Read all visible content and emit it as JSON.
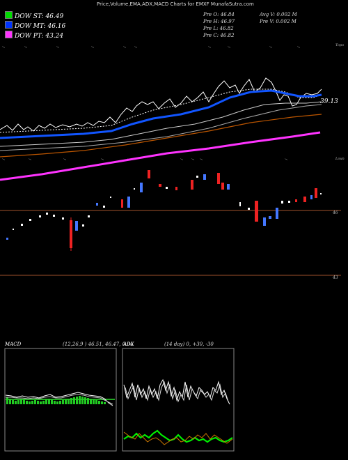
{
  "header": {
    "title": "Price,Volume,EMA,ADX,MACD Charts for EMXF MunafaSutra.com"
  },
  "legend": [
    {
      "label": "DOW ST: 46.49",
      "color": "#00dd00"
    },
    {
      "label": "DOW MT: 46.16",
      "color": "#0033ff"
    },
    {
      "label": "DOW PT: 43.24",
      "color": "#ff33ff"
    }
  ],
  "stats": {
    "pre_o": "Pre  O: 46.84",
    "pre_h": "Pre  H: 46.97",
    "pre_l": "Pre  L: 46.82",
    "pre_c": "Pre  C: 46.82",
    "avg_v": "Avg V: 0.002  M",
    "pre_v": "Pre  V: 0.002  M"
  },
  "top_panel": {
    "label_top": "Topo",
    "label_bottom": "Loun",
    "price_label": "39.13"
  },
  "candle_panel": {
    "level_high": "46",
    "level_low": "43"
  },
  "macd": {
    "title": "MACD",
    "params": "(12,26,9 ) 46.51, 46.47, 0.04"
  },
  "adx": {
    "title": "ADX",
    "params": "(14  day) 0, +30, -30"
  },
  "chart_data": [
    {
      "type": "line",
      "title": "Price,Volume,EMA,ADX,MACD Charts for EMXF",
      "series": [
        {
          "name": "DOW ST",
          "values": [
            37.8,
            37.5,
            37.2,
            37.4,
            37.9,
            38.3,
            38.6,
            38.9,
            39.2,
            39.6,
            40.1,
            40.7,
            41.4,
            41.9,
            42.3,
            42.5,
            43.1,
            43.2,
            43.6,
            43.9,
            44.5,
            44.9,
            45.1,
            44.8,
            44.4,
            44.8,
            45.4,
            45.9,
            46.2,
            46.4,
            46.49
          ]
        },
        {
          "name": "DOW MT",
          "values": [
            38.8,
            38.5,
            38.3,
            38.2,
            38.3,
            38.4,
            38.6,
            38.8,
            39.0,
            39.3,
            39.6,
            40.0,
            40.5,
            40.9,
            41.4,
            41.8,
            42.3,
            42.6,
            43.1,
            43.5,
            44.0,
            44.4,
            44.8,
            45.0,
            45.1,
            45.3,
            45.6,
            45.8,
            46.0,
            46.1,
            46.16
          ]
        },
        {
          "name": "DOW PT",
          "values": [
            34.8,
            35.0,
            35.2,
            35.5,
            35.8,
            36.1,
            36.4,
            36.7,
            37.0,
            37.4,
            37.8,
            38.1,
            38.5,
            38.9,
            39.3,
            39.6,
            40.0,
            40.3,
            40.6,
            41.0,
            41.4,
            41.7,
            42.0,
            42.2,
            42.4,
            42.6,
            42.8,
            42.9,
            43.0,
            43.1,
            43.24
          ]
        }
      ]
    },
    {
      "type": "bar",
      "title": "MACD",
      "series": [
        {
          "name": "MACD",
          "values": [
            46.51
          ]
        },
        {
          "name": "Signal",
          "values": [
            46.47
          ]
        },
        {
          "name": "Histogram",
          "values": [
            0.04
          ]
        }
      ]
    }
  ]
}
